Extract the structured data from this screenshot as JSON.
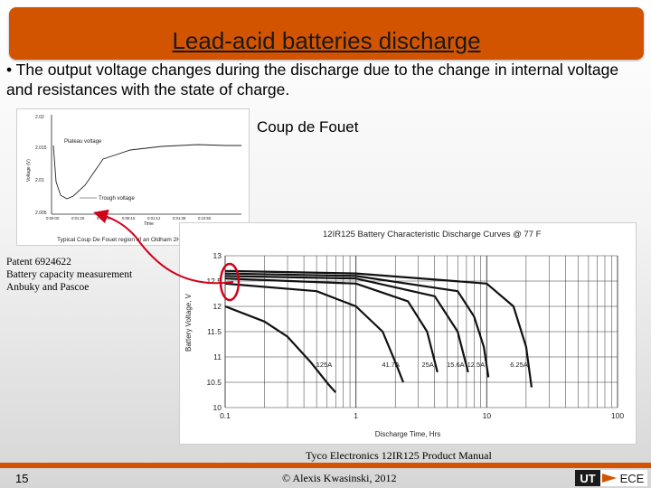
{
  "slide": {
    "title": "Lead-acid batteries discharge",
    "bullet": "• The output voltage changes during the discharge due to the change in internal voltage and resistances with the state of charge.",
    "coup_label": "Coup de Fouet",
    "patent_lines": [
      "Patent 6924622",
      "Battery capacity measurement",
      "Anbuky and Pascoe"
    ],
    "tyco_caption": "Tyco Electronics 12IR125 Product Manual",
    "page_number": "15",
    "copyright": "© Alexis Kwasinski, 2012",
    "logo_text_left": "UT",
    "logo_text_right": "ECE"
  },
  "coup_chart": {
    "y_ticks": [
      "2.02",
      "2.015",
      "2.01",
      "2.005"
    ],
    "y_label": "Voltage (V)",
    "x_ticks": [
      "0:00:00",
      "0:01:25",
      "0:04:10",
      "0:08:15",
      "0:01:12",
      "0:01:38",
      "0:10:50"
    ],
    "x_label": "Time",
    "plateau_label": "Plateau voltage",
    "trough_label": "Trough voltage",
    "caption": "Typical Coup De Fouet region of an Oldham 2HI275."
  },
  "chart_data": {
    "type": "line",
    "title": "12IR125 Battery Characteristic Discharge Curves @ 77 F",
    "xlabel": "Discharge Time, Hrs",
    "ylabel": "Battery Voltage, V",
    "xscale": "log",
    "xlim": [
      0.1,
      100
    ],
    "ylim": [
      10,
      13
    ],
    "x_ticks": [
      "0.1",
      "1",
      "10",
      "100"
    ],
    "y_ticks": [
      "13",
      "12.5",
      "12",
      "11.5",
      "11",
      "10.5",
      "10"
    ],
    "series": [
      {
        "name": "125A",
        "x": [
          0.1,
          0.2,
          0.3,
          0.45,
          0.62,
          0.7
        ],
        "y": [
          12.0,
          11.7,
          11.4,
          10.9,
          10.45,
          10.3
        ]
      },
      {
        "name": "41.7A",
        "x": [
          0.1,
          0.5,
          1.0,
          1.6,
          2.0,
          2.3
        ],
        "y": [
          12.45,
          12.3,
          12.0,
          11.5,
          10.9,
          10.5
        ]
      },
      {
        "name": "25A",
        "x": [
          0.1,
          1.0,
          2.5,
          3.5,
          4.2
        ],
        "y": [
          12.55,
          12.45,
          12.1,
          11.5,
          10.7
        ]
      },
      {
        "name": "15.6A",
        "x": [
          0.1,
          1.0,
          4.0,
          6.0,
          7.2
        ],
        "y": [
          12.6,
          12.55,
          12.2,
          11.5,
          10.7
        ]
      },
      {
        "name": "12.5A",
        "x": [
          0.1,
          1.0,
          6.0,
          8.0,
          9.5,
          10.3
        ],
        "y": [
          12.65,
          12.6,
          12.3,
          11.8,
          11.2,
          10.6
        ]
      },
      {
        "name": "6.25A",
        "x": [
          0.1,
          1.0,
          10,
          16,
          20,
          22
        ],
        "y": [
          12.7,
          12.65,
          12.45,
          12.0,
          11.2,
          10.4
        ]
      }
    ]
  }
}
